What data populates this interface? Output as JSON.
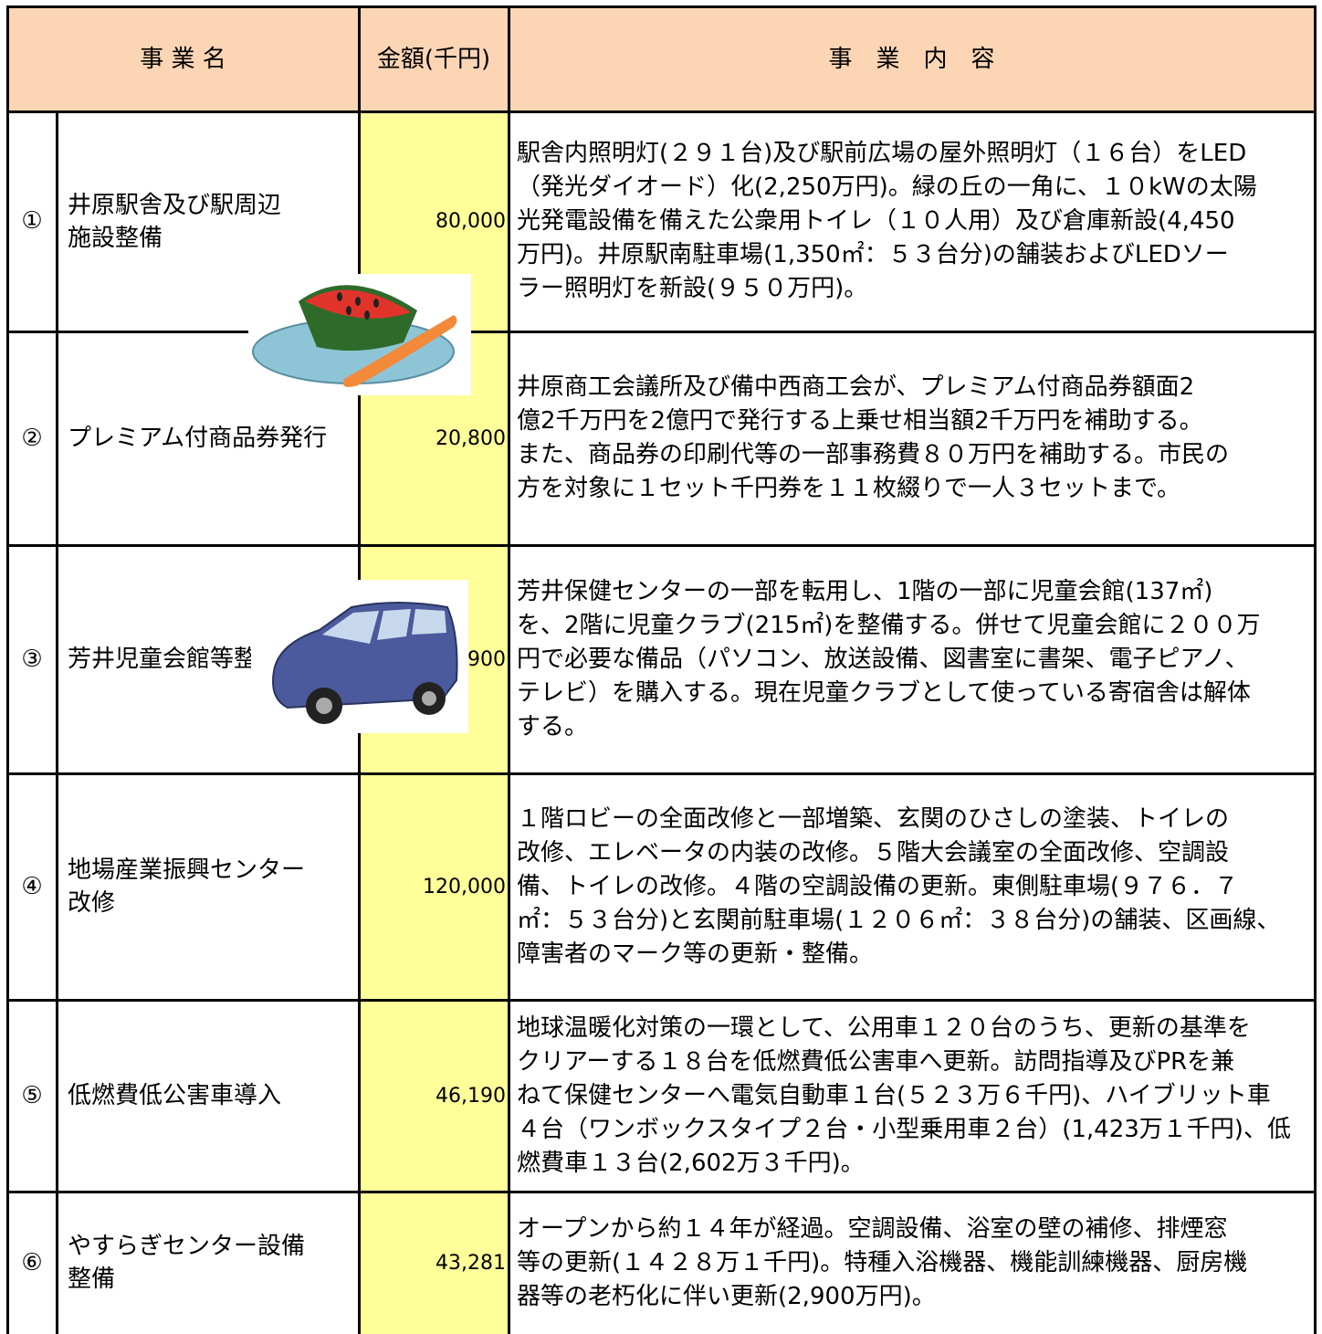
{
  "table": {
    "header": [
      "事 業 名",
      "金額(千円)",
      "事　業　内　容"
    ],
    "rows": [
      {
        "number": "①",
        "name": [
          "井原駅舎及び駅周辺",
          "施設整備"
        ],
        "amount": "80,000",
        "description": [
          "駅舎内照明灯(２９１台)及び駅前広場の屋外照明灯（１６台）をLED",
          "（発光ダイオード）化(2,250万円)。緑の丘の一角に、１０kWの太陽",
          "光発電設備を備えた公衆用トイレ（１０人用）及び倉庫新設(4,450",
          "万円)。井原駅南駐車場(1,350㎡：５３台分)の舗装およびLEDソー",
          "ラー照明灯を新設(９５０万円)。"
        ]
      },
      {
        "number": "②",
        "name": [
          "プレミアム付商品券発行"
        ],
        "amount": "20,800",
        "description": [
          "井原商工会議所及び備中西商工会が、プレミアム付商品券額面2",
          "億2千万円を2億円で発行する上乗せ相当額2千万円を補助する。",
          "また、商品券の印刷代等の一部事務費８０万円を補助する。市民の",
          "方を対象に１セット千円券を１１枚綴りで一人３セットまで。"
        ]
      },
      {
        "number": "③",
        "name": [
          "芳井児童会館等整備"
        ],
        "amount": "62,900",
        "description": [
          "芳井保健センターの一部を転用し、1階の一部に児童会館(137㎡)",
          "を、2階に児童クラブ(215㎡)を整備する。併せて児童会館に２００万",
          "円で必要な備品（パソコン、放送設備、図書室に書架、電子ピアノ、",
          "テレビ）を購入する。現在児童クラブとして使っている寄宿舎は解体",
          "する。"
        ]
      },
      {
        "number": "④",
        "name": [
          "地場産業振興センター",
          "改修"
        ],
        "amount": "120,000",
        "description": [
          "１階ロビーの全面改修と一部増築、玄関のひさしの塗装、トイレの",
          "改修、エレベータの内装の改修。５階大会議室の全面改修、空調設",
          "備、トイレの改修。４階の空調設備の更新。東側駐車場(９７６．７",
          "㎡：５３台分)と玄関前駐車場(１２０６㎡：３８台分)の舗装、区画線、",
          "障害者のマーク等の更新・整備。"
        ]
      },
      {
        "number": "⑤",
        "name": [
          "低燃費低公害車導入"
        ],
        "amount": "46,190",
        "description": [
          "地球温暖化対策の一環として、公用車１２０台のうち、更新の基準を",
          "クリアーする１８台を低燃費低公害車へ更新。訪問指導及びPRを兼",
          "ねて保健センターへ電気自動車１台(５２３万６千円)、ハイブリット車",
          "４台（ワンボックスタイプ２台・小型乗用車２台）(1,423万１千円)、低",
          "燃費車１３台(2,602万３千円)。"
        ]
      },
      {
        "number": "⑥",
        "name": [
          "やすらぎセンター設備",
          "整備"
        ],
        "amount": "43,281",
        "description": [
          "オープンから約１４年が経過。空調設備、浴室の壁の補修、排煙窓",
          "等の更新(１４２８万１千円)。特種入浴機器、機能訓練機器、厨房機",
          "器等の老朽化に伴い更新(2,900万円)。"
        ]
      }
    ]
  }
}
